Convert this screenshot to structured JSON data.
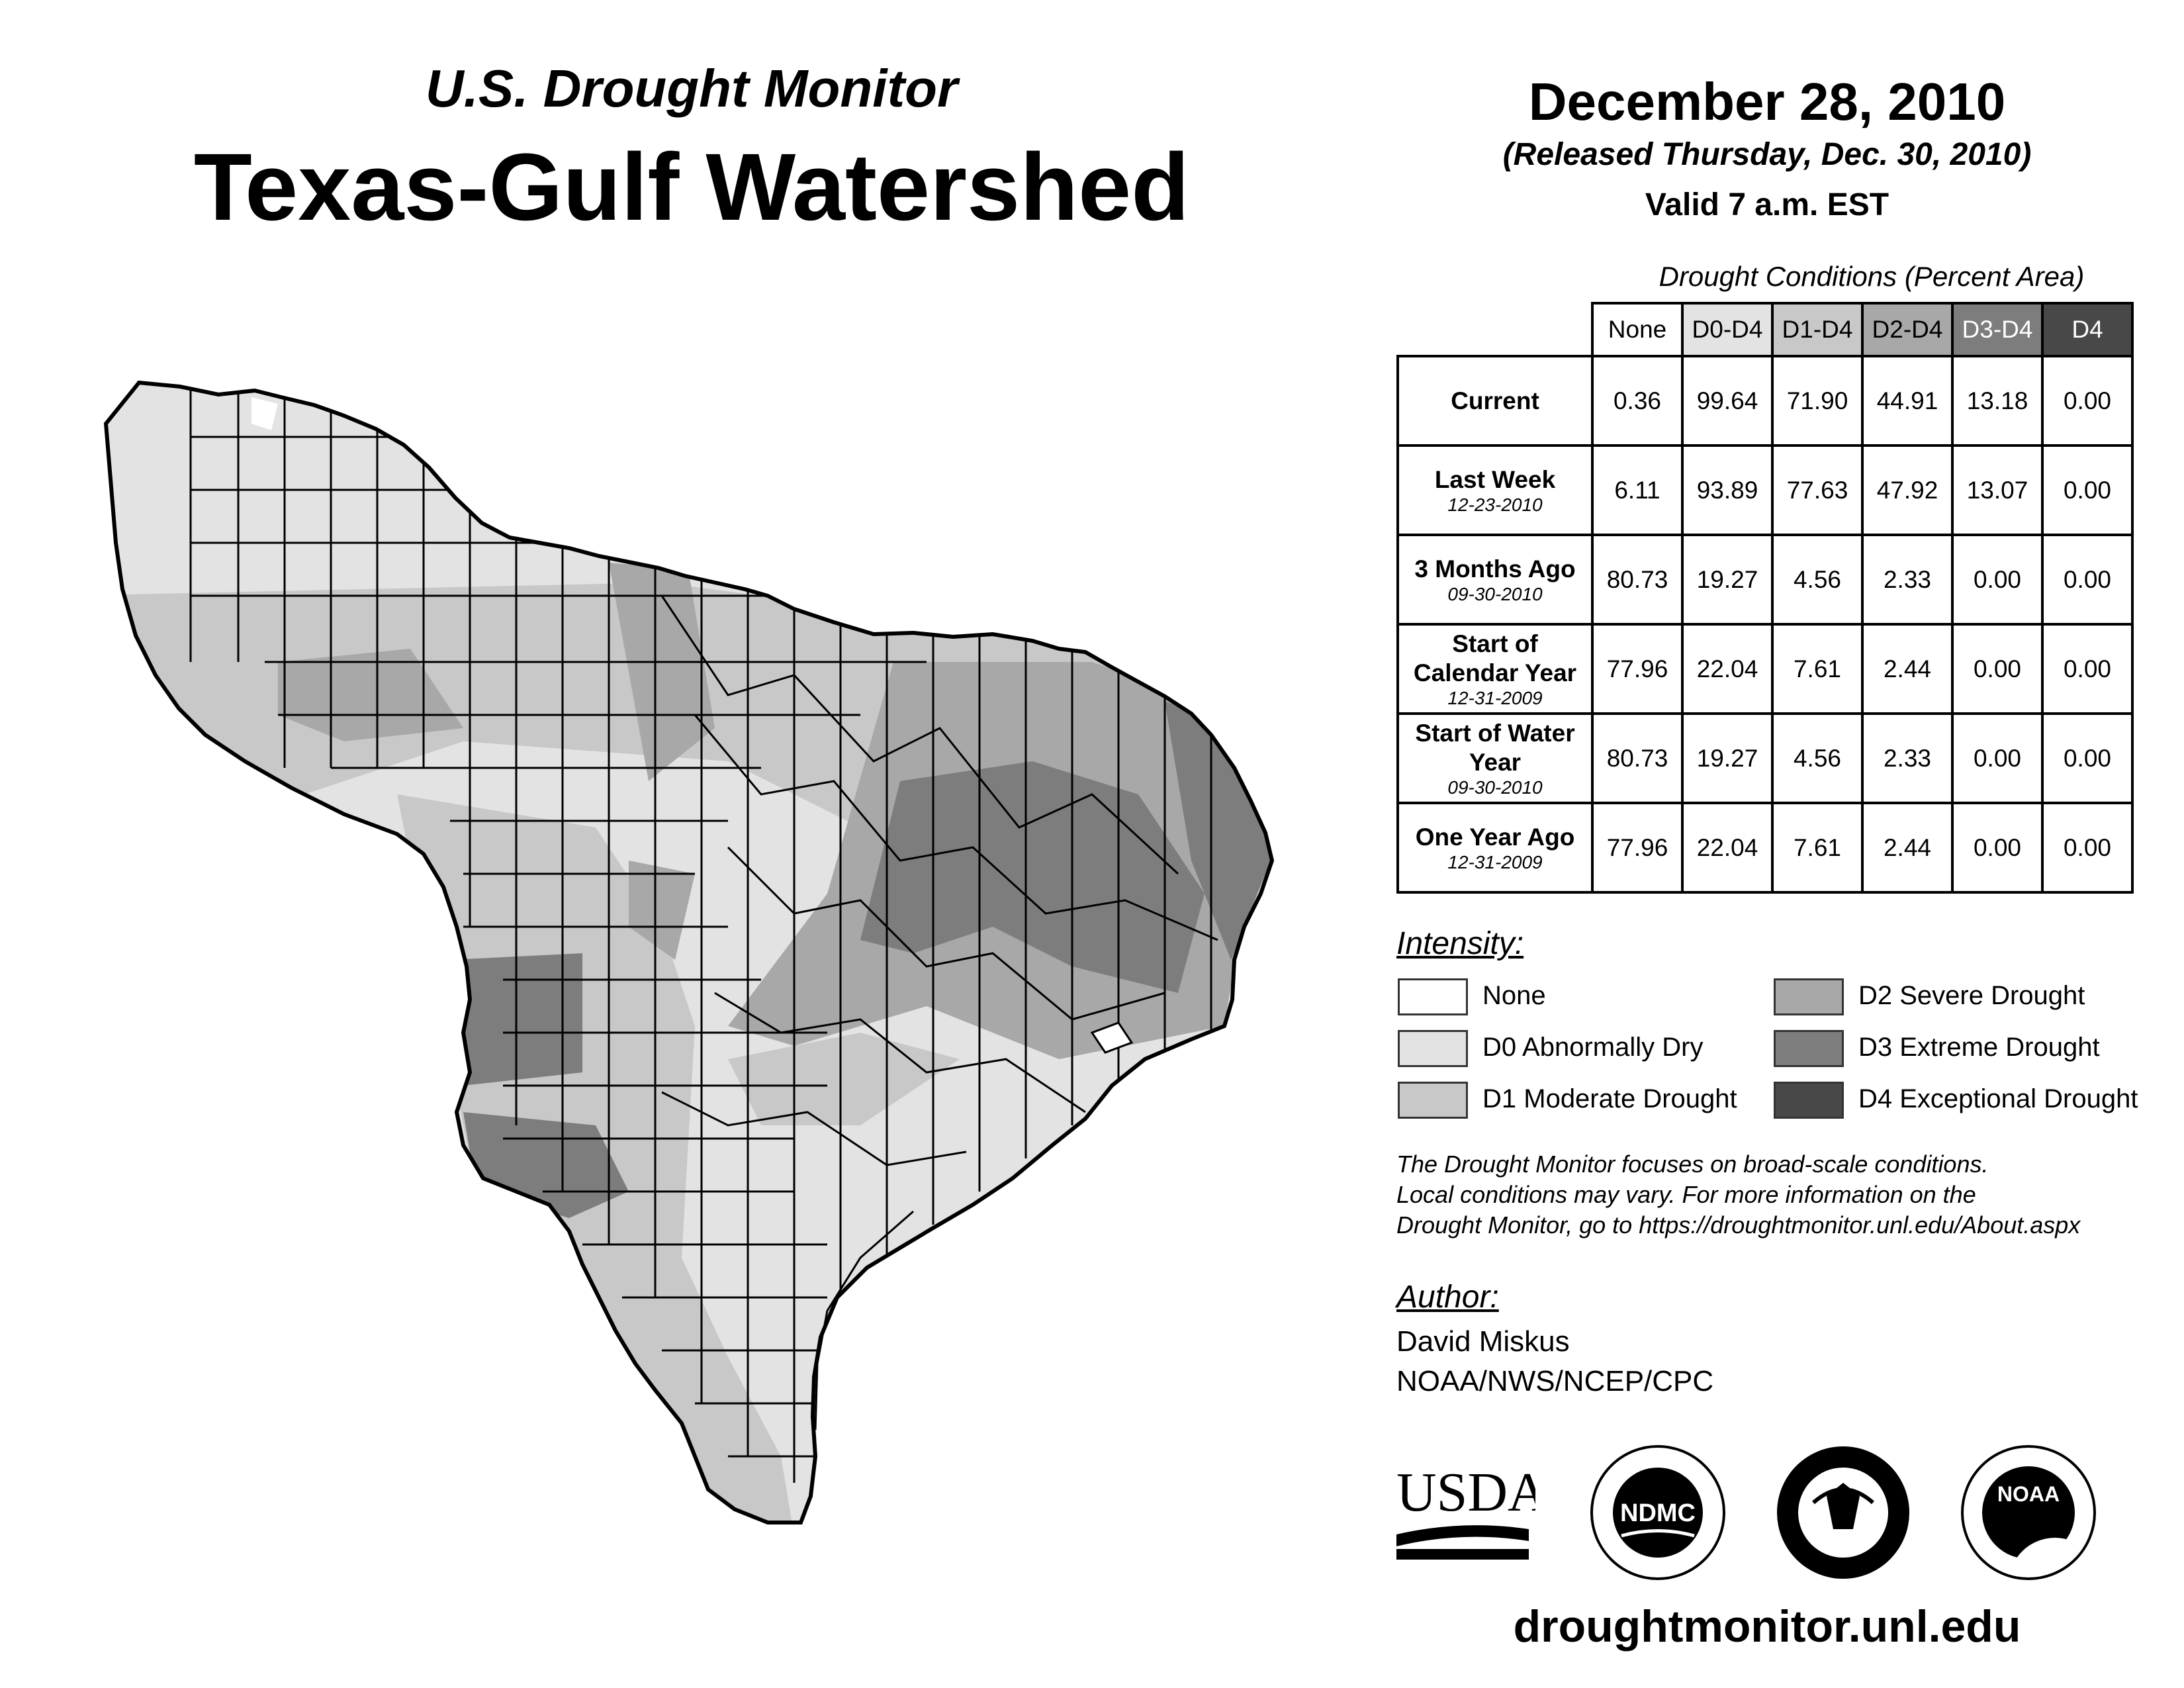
{
  "header": {
    "subtitle": "U.S. Drought Monitor",
    "title": "Texas-Gulf Watershed",
    "date": "December 28, 2010",
    "released": "(Released Thursday, Dec. 30, 2010)",
    "valid": "Valid 7 a.m. EST"
  },
  "table": {
    "title": "Drought Conditions (Percent Area)",
    "columns": [
      "None",
      "D0-D4",
      "D1-D4",
      "D2-D4",
      "D3-D4",
      "D4"
    ],
    "rows": [
      {
        "label": "Current",
        "sublabel": "",
        "values": [
          "0.36",
          "99.64",
          "71.90",
          "44.91",
          "13.18",
          "0.00"
        ]
      },
      {
        "label": "Last Week",
        "sublabel": "12-23-2010",
        "values": [
          "6.11",
          "93.89",
          "77.63",
          "47.92",
          "13.07",
          "0.00"
        ]
      },
      {
        "label": "3 Months Ago",
        "sublabel": "09-30-2010",
        "values": [
          "80.73",
          "19.27",
          "4.56",
          "2.33",
          "0.00",
          "0.00"
        ]
      },
      {
        "label": "Start of Calendar Year",
        "sublabel": "12-31-2009",
        "values": [
          "77.96",
          "22.04",
          "7.61",
          "2.44",
          "0.00",
          "0.00"
        ]
      },
      {
        "label": "Start of Water Year",
        "sublabel": "09-30-2010",
        "values": [
          "80.73",
          "19.27",
          "4.56",
          "2.33",
          "0.00",
          "0.00"
        ]
      },
      {
        "label": "One Year Ago",
        "sublabel": "12-31-2009",
        "values": [
          "77.96",
          "22.04",
          "7.61",
          "2.44",
          "0.00",
          "0.00"
        ]
      }
    ]
  },
  "legend": {
    "title": "Intensity:",
    "items": [
      {
        "label": "None",
        "color": "#ffffff"
      },
      {
        "label": "D0 Abnormally Dry",
        "color": "#e3e3e3"
      },
      {
        "label": "D1 Moderate Drought",
        "color": "#c8c8c8"
      },
      {
        "label": "D2 Severe Drought",
        "color": "#a8a8a8"
      },
      {
        "label": "D3 Extreme Drought",
        "color": "#7d7d7d"
      },
      {
        "label": "D4 Exceptional Drought",
        "color": "#484848"
      }
    ]
  },
  "note": {
    "line1": "The Drought Monitor focuses on broad-scale conditions.",
    "line2": "Local conditions may vary. For more information on the",
    "line3": "Drought Monitor, go to https://droughtmonitor.unl.edu/About.aspx"
  },
  "author": {
    "title": "Author:",
    "name": "David Miskus",
    "org": "NOAA/NWS/NCEP/CPC"
  },
  "logos": {
    "usda": "USDA",
    "ndmc": "NDMC",
    "noaa": "NOAA"
  },
  "footer": {
    "url": "droughtmonitor.unl.edu"
  }
}
